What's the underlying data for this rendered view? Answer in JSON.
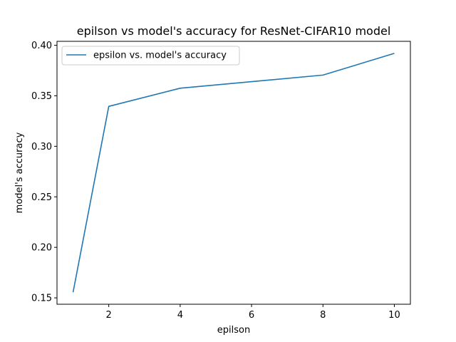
{
  "chart_data": {
    "type": "line",
    "title": "epilson vs model's accuracy for ResNet-CIFAR10 model",
    "xlabel": "epilson",
    "ylabel": "model's accuracy",
    "x": [
      1,
      2,
      4,
      8,
      10
    ],
    "series": [
      {
        "name": "epsilon vs. model's accuracy",
        "values": [
          0.1555,
          0.3395,
          0.3575,
          0.3705,
          0.392
        ],
        "color": "#1f77b4"
      }
    ],
    "xlim": [
      0.55,
      10.45
    ],
    "ylim": [
      0.1437,
      0.4039
    ],
    "xticks": [
      2,
      4,
      6,
      8,
      10
    ],
    "yticks": [
      0.15,
      0.2,
      0.25,
      0.3,
      0.35,
      0.4
    ],
    "ytick_labels": [
      "0.15",
      "0.20",
      "0.25",
      "0.30",
      "0.35",
      "0.40"
    ],
    "grid": false,
    "legend_position": "top-left"
  }
}
